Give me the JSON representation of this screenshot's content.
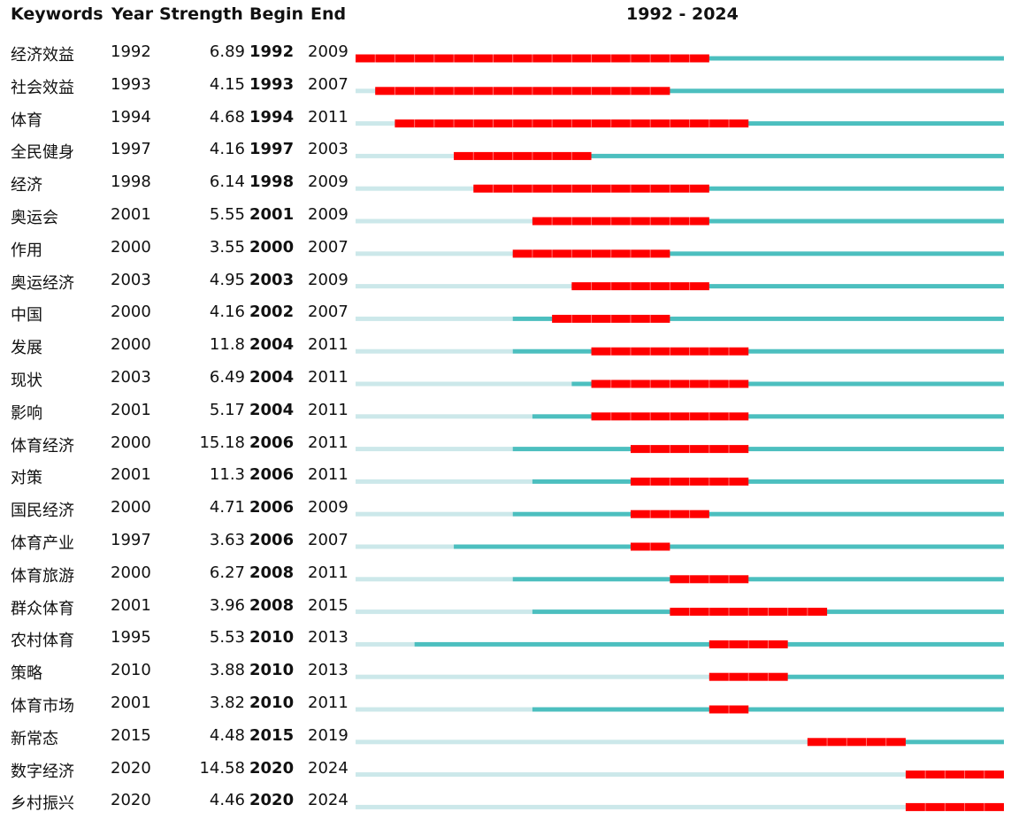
{
  "headers": {
    "keywords": "Keywords",
    "year": "Year",
    "strength": "Strength",
    "begin": "Begin",
    "end": "End",
    "range": "1992 - 2024"
  },
  "colors": {
    "burst": "#ff0000",
    "active": "#4cbfbf",
    "inactive": "#cce8ea"
  },
  "chart_data": {
    "type": "table",
    "range_start": 1992,
    "range_end": 2024,
    "rows": [
      {
        "keyword": "经济效益",
        "year": "1992",
        "strength": "6.89",
        "begin": "1992",
        "end": "2009"
      },
      {
        "keyword": "社会效益",
        "year": "1993",
        "strength": "4.15",
        "begin": "1993",
        "end": "2007"
      },
      {
        "keyword": "体育",
        "year": "1994",
        "strength": "4.68",
        "begin": "1994",
        "end": "2011"
      },
      {
        "keyword": "全民健身",
        "year": "1997",
        "strength": "4.16",
        "begin": "1997",
        "end": "2003"
      },
      {
        "keyword": "经济",
        "year": "1998",
        "strength": "6.14",
        "begin": "1998",
        "end": "2009"
      },
      {
        "keyword": "奥运会",
        "year": "2001",
        "strength": "5.55",
        "begin": "2001",
        "end": "2009"
      },
      {
        "keyword": "作用",
        "year": "2000",
        "strength": "3.55",
        "begin": "2000",
        "end": "2007"
      },
      {
        "keyword": "奥运经济",
        "year": "2003",
        "strength": "4.95",
        "begin": "2003",
        "end": "2009"
      },
      {
        "keyword": "中国",
        "year": "2000",
        "strength": "4.16",
        "begin": "2002",
        "end": "2007"
      },
      {
        "keyword": "发展",
        "year": "2000",
        "strength": "11.8",
        "begin": "2004",
        "end": "2011"
      },
      {
        "keyword": "现状",
        "year": "2003",
        "strength": "6.49",
        "begin": "2004",
        "end": "2011"
      },
      {
        "keyword": "影响",
        "year": "2001",
        "strength": "5.17",
        "begin": "2004",
        "end": "2011"
      },
      {
        "keyword": "体育经济",
        "year": "2000",
        "strength": "15.18",
        "begin": "2006",
        "end": "2011"
      },
      {
        "keyword": "对策",
        "year": "2001",
        "strength": "11.3",
        "begin": "2006",
        "end": "2011"
      },
      {
        "keyword": "国民经济",
        "year": "2000",
        "strength": "4.71",
        "begin": "2006",
        "end": "2009"
      },
      {
        "keyword": "体育产业",
        "year": "1997",
        "strength": "3.63",
        "begin": "2006",
        "end": "2007"
      },
      {
        "keyword": "体育旅游",
        "year": "2000",
        "strength": "6.27",
        "begin": "2008",
        "end": "2011"
      },
      {
        "keyword": "群众体育",
        "year": "2001",
        "strength": "3.96",
        "begin": "2008",
        "end": "2015"
      },
      {
        "keyword": "农村体育",
        "year": "1995",
        "strength": "5.53",
        "begin": "2010",
        "end": "2013"
      },
      {
        "keyword": "策略",
        "year": "2010",
        "strength": "3.88",
        "begin": "2010",
        "end": "2013"
      },
      {
        "keyword": "体育市场",
        "year": "2001",
        "strength": "3.82",
        "begin": "2010",
        "end": "2011"
      },
      {
        "keyword": "新常态",
        "year": "2015",
        "strength": "4.48",
        "begin": "2015",
        "end": "2019"
      },
      {
        "keyword": "数字经济",
        "year": "2020",
        "strength": "14.58",
        "begin": "2020",
        "end": "2024"
      },
      {
        "keyword": "乡村振兴",
        "year": "2020",
        "strength": "4.46",
        "begin": "2020",
        "end": "2024"
      }
    ]
  }
}
